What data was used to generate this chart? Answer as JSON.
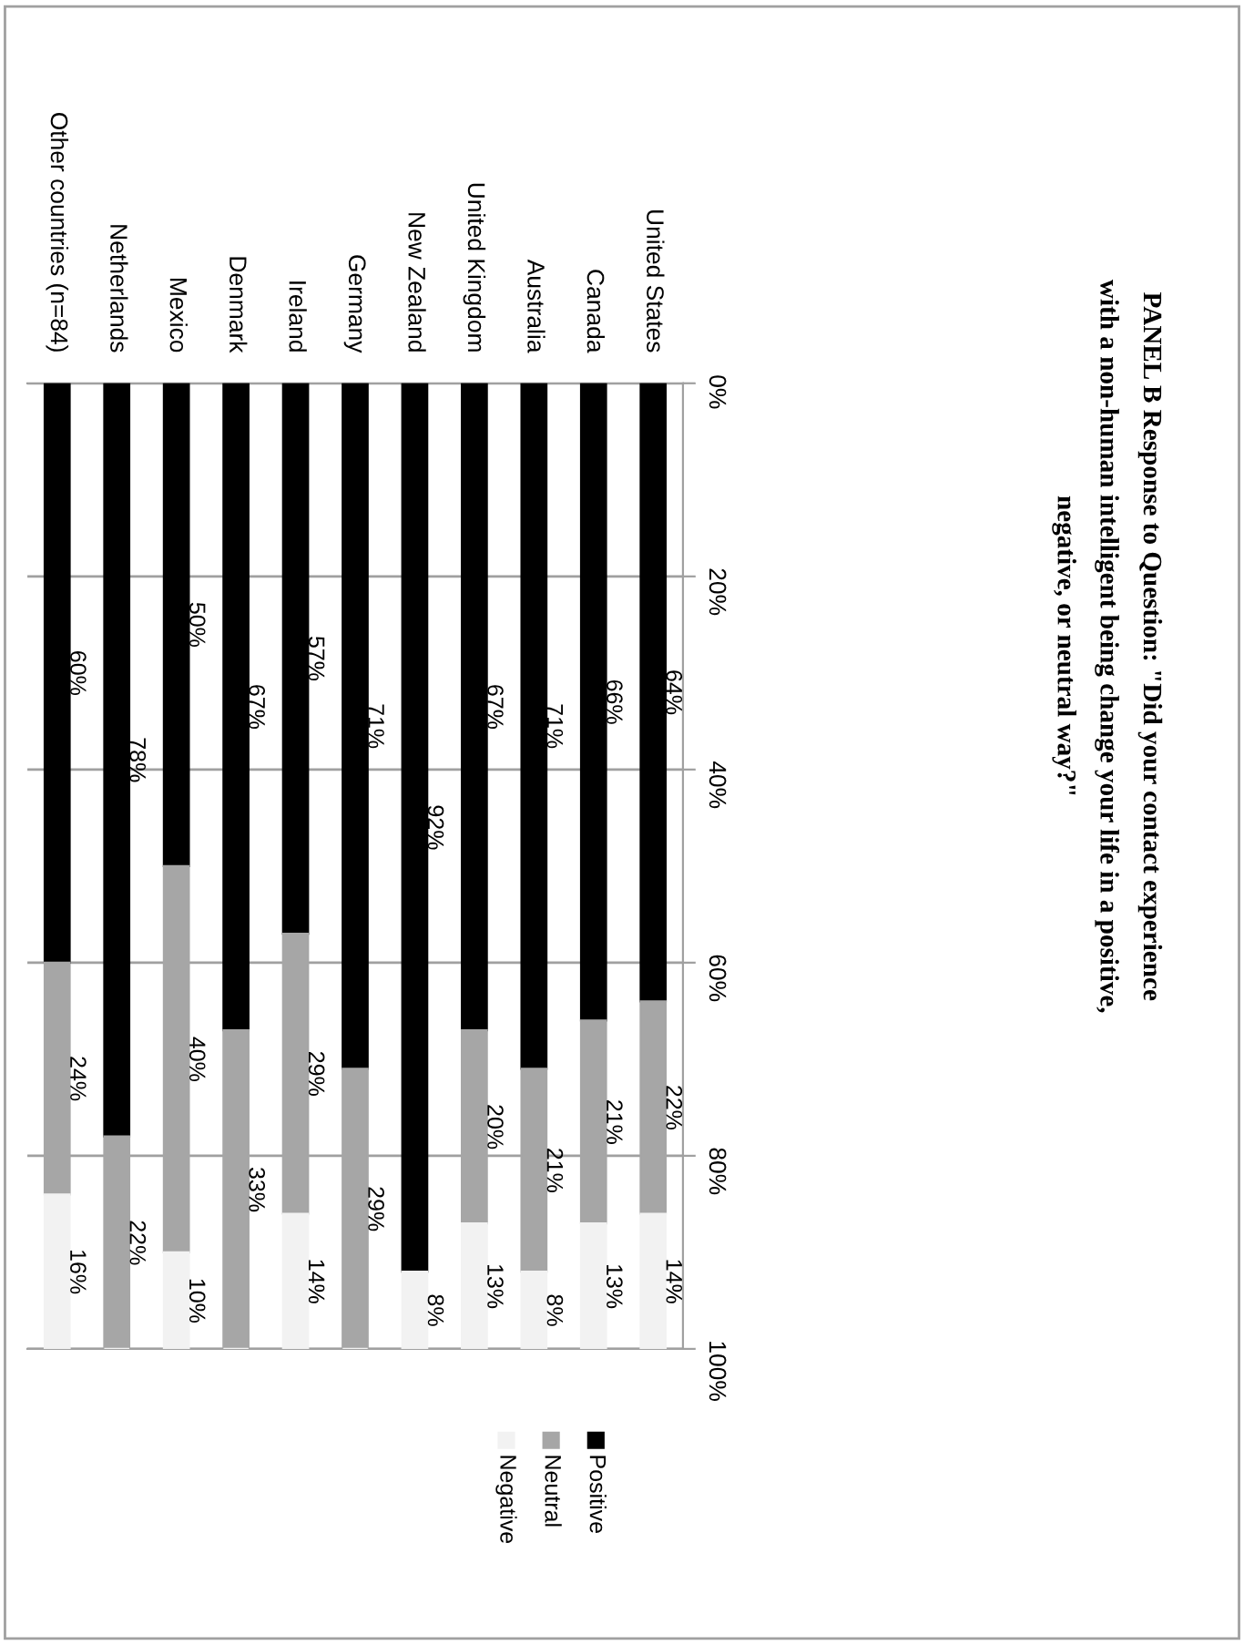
{
  "chart_data": {
    "type": "bar",
    "title": "PANEL B Response to Question: \"Did your contact experience\nwith a non-human intelligent being change your life in a positive,\nnegative, or neutral way?\"",
    "categories": [
      "Other countries (n=84)",
      "Netherlands",
      "Mexico",
      "Denmark",
      "Ireland",
      "Germany",
      "New Zealand",
      "United Kingdom",
      "Australia",
      "Canada",
      "United States"
    ],
    "stacked": true,
    "series": [
      {
        "name": "Positive",
        "color": "#000000",
        "values": [
          60,
          78,
          50,
          67,
          57,
          71,
          92,
          67,
          71,
          66,
          64
        ],
        "value_labels": [
          "60%",
          "78%",
          "50%",
          "67%",
          "57%",
          "71%",
          "92%",
          "67%",
          "71%",
          "66%",
          "64%"
        ]
      },
      {
        "name": "Neutral",
        "color": "#a6a6a6",
        "values": [
          24,
          22,
          40,
          33,
          29,
          29,
          0,
          20,
          21,
          21,
          22
        ],
        "value_labels": [
          "24%",
          "22%",
          "40%",
          "33%",
          "29%",
          "29%",
          null,
          "20%",
          "21%",
          "21%",
          "22%"
        ]
      },
      {
        "name": "Negative",
        "color": "#f2f2f2",
        "values": [
          16,
          0,
          10,
          0,
          14,
          0,
          8,
          13,
          8,
          13,
          14
        ],
        "value_labels": [
          "16%",
          null,
          "10%",
          null,
          "14%",
          null,
          "8%",
          "13%",
          "8%",
          "13%",
          "14%"
        ]
      }
    ],
    "ylim": [
      100,
      0
    ],
    "yticks": [
      {
        "value": 0,
        "label": "0%"
      },
      {
        "value": 20,
        "label": "20%"
      },
      {
        "value": 40,
        "label": "40%"
      },
      {
        "value": 60,
        "label": "60%"
      },
      {
        "value": 80,
        "label": "80%"
      },
      {
        "value": 100,
        "label": "100%"
      }
    ],
    "grid": "y",
    "legend": "bottom right"
  }
}
